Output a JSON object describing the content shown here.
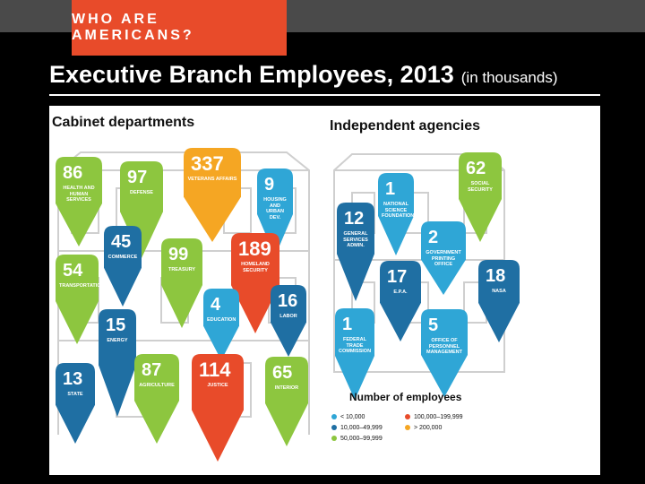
{
  "banner": "WHO ARE AMERICANS?",
  "title": "Executive Branch Employees, 2013",
  "title_sub": "(in thousands)",
  "sections": {
    "cabinet": "Cabinet departments",
    "agencies": "Independent agencies"
  },
  "colors": {
    "light_blue": "#2fa6d6",
    "dark_blue": "#1f6fa3",
    "green": "#8dc63f",
    "red": "#e84b2a",
    "orange": "#f5a623",
    "banner": "#e84b2a"
  },
  "cabinet": [
    {
      "value": "86",
      "label": "HEALTH AND HUMAN SERVICES",
      "color": "green"
    },
    {
      "value": "97",
      "label": "DEFENSE",
      "color": "green"
    },
    {
      "value": "337",
      "label": "VETERANS AFFAIRS",
      "color": "orange"
    },
    {
      "value": "9",
      "label": "HOUSING AND URBAN DEV.",
      "color": "light_blue"
    },
    {
      "value": "45",
      "label": "COMMERCE",
      "color": "dark_blue"
    },
    {
      "value": "99",
      "label": "TREASURY",
      "color": "green"
    },
    {
      "value": "189",
      "label": "HOMELAND SECURITY",
      "color": "red"
    },
    {
      "value": "54",
      "label": "TRANSPORTATION",
      "color": "green"
    },
    {
      "value": "4",
      "label": "EDUCATION",
      "color": "light_blue"
    },
    {
      "value": "16",
      "label": "LABOR",
      "color": "dark_blue"
    },
    {
      "value": "15",
      "label": "ENERGY",
      "color": "dark_blue"
    },
    {
      "value": "87",
      "label": "AGRICULTURE",
      "color": "green"
    },
    {
      "value": "114",
      "label": "JUSTICE",
      "color": "red"
    },
    {
      "value": "65",
      "label": "INTERIOR",
      "color": "green"
    },
    {
      "value": "13",
      "label": "STATE",
      "color": "dark_blue"
    }
  ],
  "agencies": [
    {
      "value": "62",
      "label": "SOCIAL SECURITY",
      "color": "green"
    },
    {
      "value": "1",
      "label": "NATIONAL SCIENCE FOUNDATION",
      "color": "light_blue"
    },
    {
      "value": "12",
      "label": "GENERAL SERVICES ADMIN.",
      "color": "dark_blue"
    },
    {
      "value": "2",
      "label": "GOVERNMENT PRINTING OFFICE",
      "color": "light_blue"
    },
    {
      "value": "17",
      "label": "E.P.A.",
      "color": "dark_blue"
    },
    {
      "value": "18",
      "label": "NASA",
      "color": "dark_blue"
    },
    {
      "value": "1",
      "label": "FEDERAL TRADE COMMISSION",
      "color": "light_blue"
    },
    {
      "value": "5",
      "label": "OFFICE OF PERSONNEL MANAGEMENT",
      "color": "light_blue"
    }
  ],
  "legend": {
    "title": "Number of employees",
    "items": [
      {
        "label": "< 10,000",
        "color": "light_blue"
      },
      {
        "label": "10,000–49,999",
        "color": "dark_blue"
      },
      {
        "label": "50,000–99,999",
        "color": "green"
      },
      {
        "label": "100,000–199,999",
        "color": "red"
      },
      {
        "label": "> 200,000",
        "color": "orange"
      }
    ]
  }
}
